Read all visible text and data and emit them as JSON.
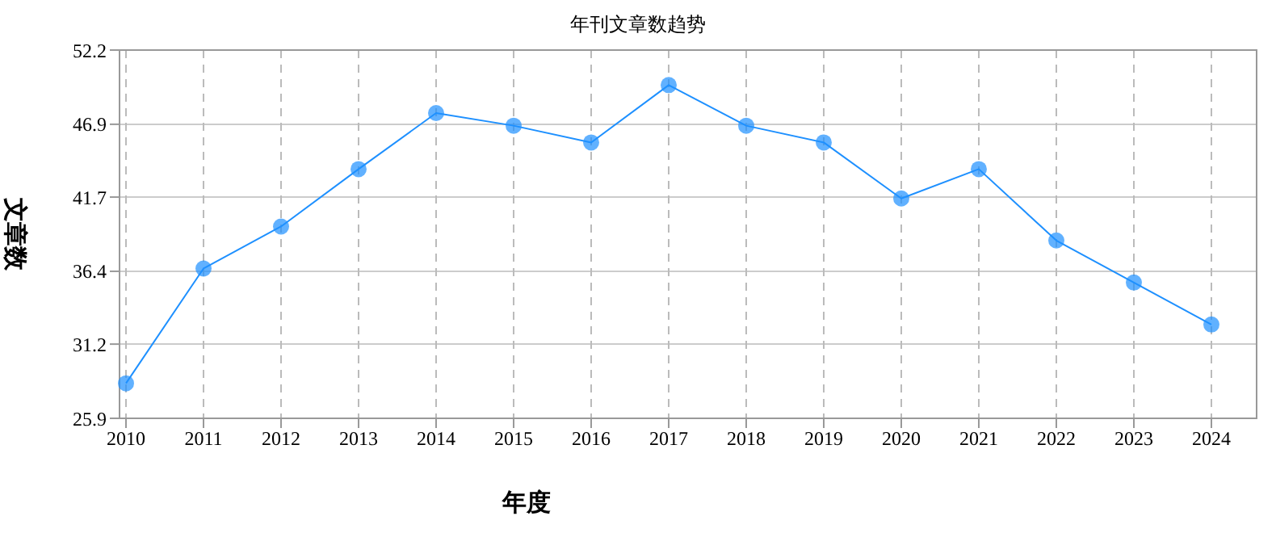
{
  "chart_data": {
    "type": "line",
    "title": "年刊文章数趋势",
    "xlabel": "年度",
    "ylabel": "文章数",
    "categories": [
      "2010",
      "2011",
      "2012",
      "2013",
      "2014",
      "2015",
      "2016",
      "2017",
      "2018",
      "2019",
      "2020",
      "2021",
      "2022",
      "2023",
      "2024"
    ],
    "series": [
      {
        "color": "#1e90ff",
        "values": [
          28.4,
          36.6,
          39.6,
          43.7,
          47.7,
          46.8,
          45.6,
          49.7,
          46.8,
          45.6,
          41.6,
          43.7,
          38.6,
          35.6,
          32.6
        ]
      }
    ],
    "ylim": [
      25.9,
      52.2
    ],
    "yticks": [
      25.9,
      31.2,
      36.4,
      41.7,
      46.9,
      52.2
    ],
    "grid": true,
    "marker": "circle",
    "legend": false
  }
}
